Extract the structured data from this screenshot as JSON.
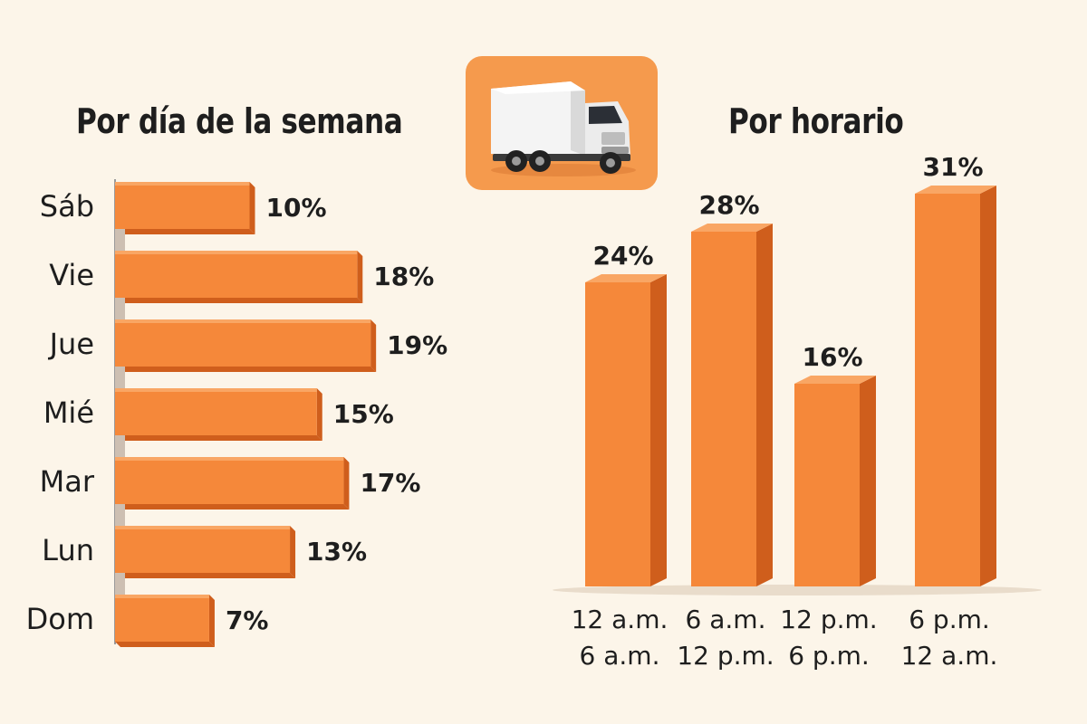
{
  "chart_data": [
    {
      "type": "bar",
      "orientation": "horizontal",
      "title": "Por día de la semana",
      "categories": [
        "Sáb",
        "Vie",
        "Jue",
        "Mié",
        "Mar",
        "Lun",
        "Dom"
      ],
      "values": [
        10,
        18,
        19,
        15,
        17,
        13,
        7
      ],
      "value_labels": [
        "10%",
        "18%",
        "19%",
        "15%",
        "17%",
        "13%",
        "7%"
      ],
      "unit": "%",
      "xlim": [
        0,
        20
      ],
      "grid": false
    },
    {
      "type": "bar",
      "orientation": "vertical",
      "title": "Por horario",
      "categories": [
        [
          "12 a.m.",
          "6 a.m."
        ],
        [
          "6 a.m.",
          "12 p.m."
        ],
        [
          "12 p.m.",
          "6 p.m."
        ],
        [
          "6 p.m.",
          "12 a.m."
        ]
      ],
      "values": [
        24,
        28,
        16,
        31
      ],
      "value_labels": [
        "24%",
        "28%",
        "16%",
        "31%"
      ],
      "unit": "%",
      "ylim": [
        0,
        31
      ],
      "grid": false
    }
  ],
  "colors": {
    "bar_front": "#f5883a",
    "bar_top": "#f9a664",
    "bar_side": "#cf5e1c",
    "background": "#fcf5e9",
    "text": "#1e1e1e",
    "icon_tile": "#f59a4d"
  },
  "icons": {
    "truck": "delivery-truck-icon"
  }
}
